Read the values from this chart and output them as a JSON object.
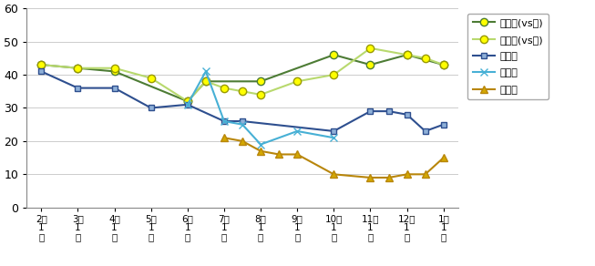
{
  "x_tick_labels": [
    "2月\n1\n日",
    "3月\n1\n日",
    "4月\n1\n日",
    "5月\n1\n日",
    "6月\n1\n日",
    "7月\n1\n日",
    "8月\n1\n日",
    "9月\n1\n日",
    "10月\n1\n日",
    "11月\n1\n日",
    "12月\n1\n日",
    "1月\n1\n日"
  ],
  "x_ticks": [
    0,
    1,
    2,
    3,
    4,
    5,
    6,
    7,
    8,
    9,
    10,
    11
  ],
  "series": [
    {
      "name": "蔡英文(vs朱)",
      "line_color": "#4d7c35",
      "marker": "o",
      "mfc": "#ffff00",
      "mec": "#4d7c35",
      "x": [
        0,
        1,
        2,
        4,
        4.5,
        6,
        8,
        9,
        10,
        11
      ],
      "y": [
        43,
        42,
        41,
        32,
        38,
        38,
        46,
        43,
        46,
        43
      ]
    },
    {
      "name": "蔡英文(vs洪)",
      "line_color": "#b8d96e",
      "marker": "o",
      "mfc": "#ffff00",
      "mec": "#999900",
      "x": [
        0,
        1,
        2,
        3,
        4,
        4.5,
        5,
        5.5,
        6,
        7,
        8,
        9,
        10,
        10.5,
        11
      ],
      "y": [
        43,
        42,
        42,
        39,
        32,
        38,
        36,
        35,
        34,
        38,
        40,
        48,
        46,
        45,
        43
      ]
    },
    {
      "name": "朱立倫",
      "line_color": "#2e4f8f",
      "marker": "s",
      "mfc": "#8eb0d8",
      "mec": "#2e4f8f",
      "x": [
        0,
        1,
        2,
        3,
        4,
        5,
        5.5,
        8,
        9,
        9.5,
        10,
        10.5,
        11
      ],
      "y": [
        41,
        36,
        36,
        30,
        31,
        26,
        26,
        23,
        29,
        29,
        28,
        23,
        25
      ]
    },
    {
      "name": "洪秀柱",
      "line_color": "#47b0d5",
      "marker": "x",
      "mfc": "#47b0d5",
      "mec": "#47b0d5",
      "x": [
        4,
        4.5,
        5,
        5.5,
        6,
        7,
        8
      ],
      "y": [
        31,
        41,
        26,
        25,
        19,
        23,
        21
      ]
    },
    {
      "name": "宋楚瑜",
      "line_color": "#b8860b",
      "marker": "^",
      "mfc": "#d4a800",
      "mec": "#b8860b",
      "x": [
        5,
        5.5,
        6,
        6.5,
        7,
        8,
        9,
        9.5,
        10,
        10.5,
        11
      ],
      "y": [
        21,
        20,
        17,
        16,
        16,
        10,
        9,
        9,
        10,
        10,
        15
      ]
    }
  ],
  "ylim": [
    0,
    60
  ],
  "yticks": [
    0,
    10,
    20,
    30,
    40,
    50,
    60
  ],
  "grid_color": "#cccccc",
  "legend_labels": [
    "蔡英文(vs朱)",
    "蔡英文(vs洪)",
    "朱立倫",
    "洪秀柱",
    "宋楚瑜"
  ]
}
